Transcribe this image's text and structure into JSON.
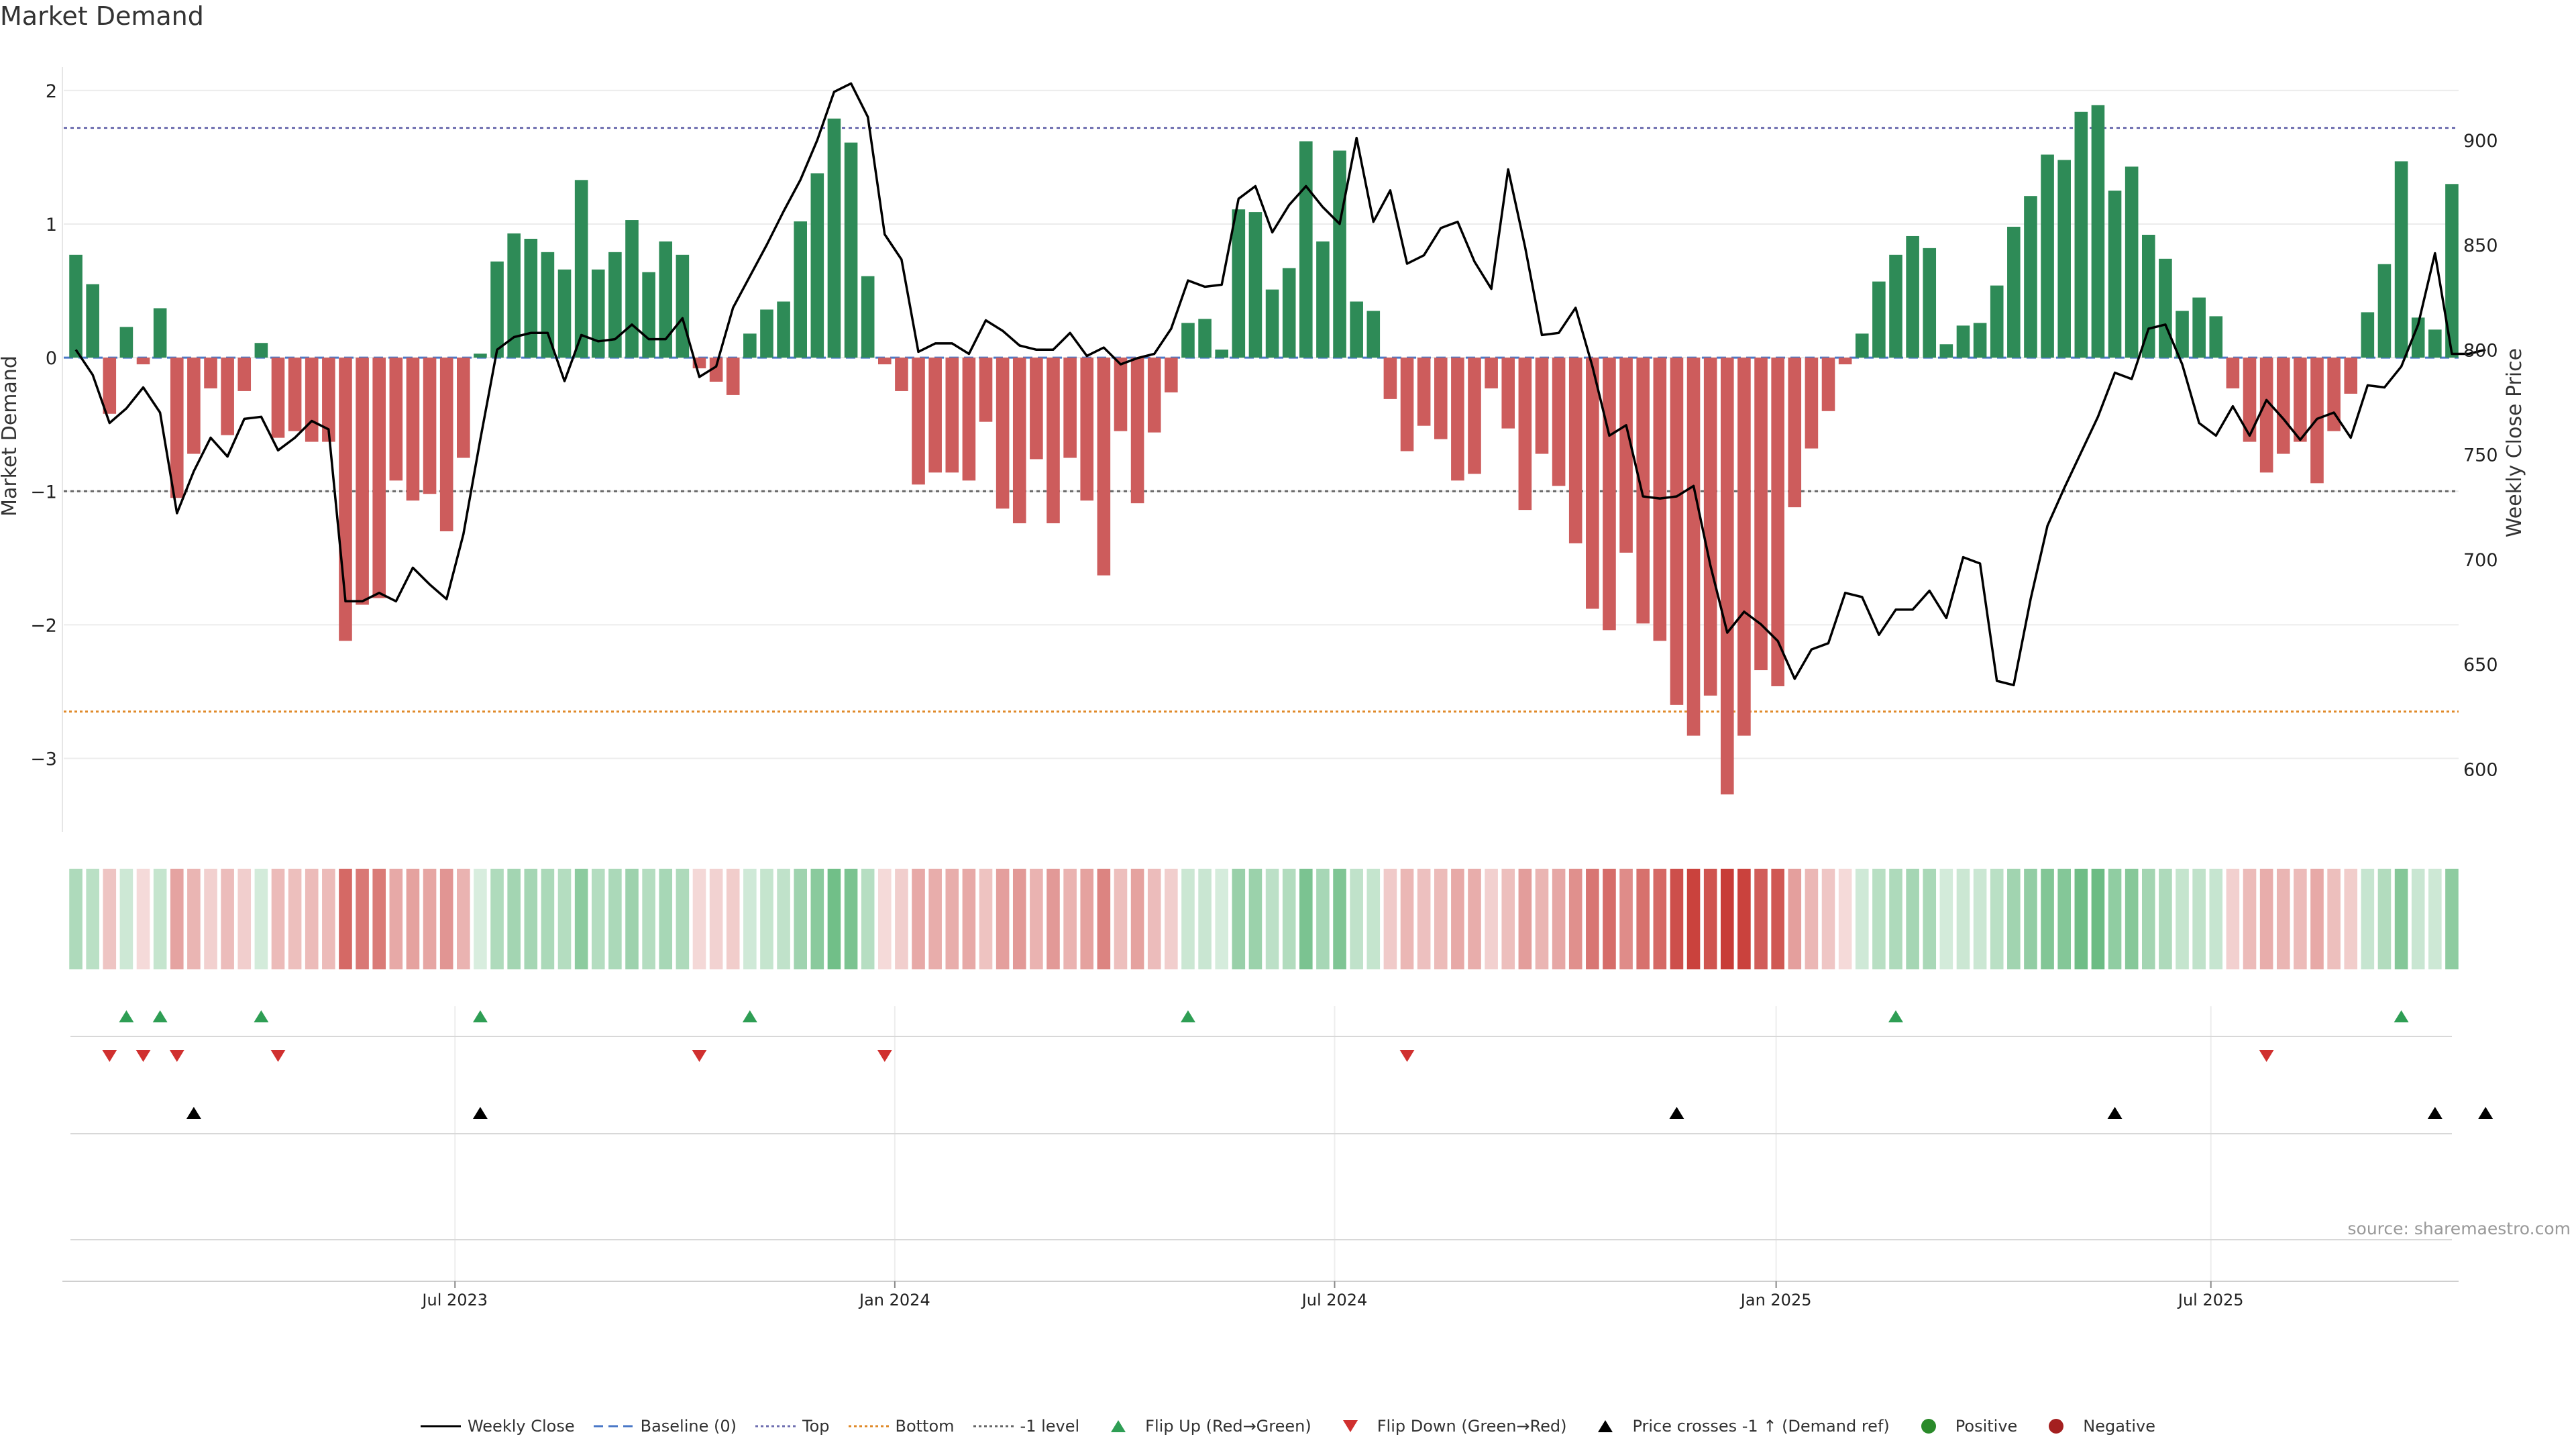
{
  "title": "Market Demand",
  "source": "source: sharemaestro.com",
  "chart_data": {
    "type": "bar",
    "title": "Market Demand",
    "ylabel_left": "Market Demand",
    "ylabel_right": "Weekly Close Price",
    "ylim_left": [
      -3.55,
      2.1
    ],
    "ylim_right": [
      570,
      930
    ],
    "y_ticks_left": [
      2,
      1,
      0,
      -1,
      -2,
      -3
    ],
    "y_tick_labels_left": [
      "2",
      "1",
      "0",
      "−1",
      "−2",
      "−3"
    ],
    "y_ticks_right": [
      900,
      850,
      800,
      750,
      700,
      650,
      600
    ],
    "reference_lines": {
      "top": 1.72,
      "baseline": 0,
      "minus1": -1,
      "bottom": -2.65
    },
    "x_tick_labels": [
      "Jul 2023",
      "Jan 2024",
      "Jul 2024",
      "Jan 2025",
      "Jul 2025"
    ],
    "x_tick_index": [
      22.5,
      48.6,
      74.7,
      100.9,
      126.7
    ],
    "demand": [
      0.77,
      0.55,
      -0.42,
      0.23,
      -0.05,
      0.37,
      -1.05,
      -0.72,
      -0.23,
      -0.58,
      -0.25,
      0.11,
      -0.6,
      -0.55,
      -0.63,
      -0.63,
      -2.12,
      -1.85,
      -1.8,
      -0.92,
      -1.07,
      -1.02,
      -1.3,
      -0.75,
      0.03,
      0.72,
      0.93,
      0.89,
      0.79,
      0.66,
      1.33,
      0.66,
      0.79,
      1.03,
      0.64,
      0.87,
      0.77,
      -0.08,
      -0.18,
      -0.28,
      0.18,
      0.36,
      0.42,
      1.02,
      1.38,
      1.79,
      1.61,
      0.61,
      -0.05,
      -0.25,
      -0.95,
      -0.86,
      -0.86,
      -0.92,
      -0.48,
      -1.13,
      -1.24,
      -0.76,
      -1.24,
      -0.75,
      -1.07,
      -1.63,
      -0.55,
      -1.09,
      -0.56,
      -0.26,
      0.26,
      0.29,
      0.06,
      1.11,
      1.09,
      0.51,
      0.67,
      1.62,
      0.87,
      1.55,
      0.42,
      0.35,
      -0.31,
      -0.7,
      -0.51,
      -0.61,
      -0.92,
      -0.87,
      -0.23,
      -0.53,
      -1.14,
      -0.72,
      -0.96,
      -1.39,
      -1.88,
      -2.04,
      -1.46,
      -1.99,
      -2.12,
      -2.6,
      -2.83,
      -2.53,
      -3.27,
      -2.83,
      -2.34,
      -2.46,
      -1.12,
      -0.68,
      -0.4,
      -0.05,
      0.18,
      0.57,
      0.77,
      0.91,
      0.82,
      0.1,
      0.24,
      0.26,
      0.54,
      0.98,
      1.21,
      1.52,
      1.48,
      1.84,
      1.89,
      1.25,
      1.43,
      0.92,
      0.74,
      0.35,
      0.45,
      0.31,
      -0.23,
      -0.63,
      -0.86,
      -0.72,
      -0.63,
      -0.94,
      -0.55,
      -0.27,
      0.34,
      0.7,
      1.47,
      0.3,
      0.21,
      1.3
    ],
    "close": [
      800,
      788,
      765,
      772,
      782,
      770,
      722,
      742,
      758,
      749,
      767,
      768,
      752,
      758,
      766,
      762,
      680,
      680,
      684,
      680,
      696,
      688,
      681,
      712,
      757,
      800,
      806,
      808,
      808,
      785,
      807,
      804,
      805,
      812,
      805,
      805,
      815,
      787,
      792,
      820,
      835,
      850,
      866,
      881,
      900,
      923,
      927,
      911,
      855,
      843,
      799,
      803,
      803,
      798,
      814,
      809,
      802,
      800,
      800,
      808,
      797,
      801,
      793,
      796,
      798,
      810,
      833,
      830,
      831,
      872,
      878,
      856,
      869,
      878,
      868,
      860,
      901,
      861,
      876,
      841,
      845,
      858,
      861,
      842,
      829,
      886,
      849,
      807,
      808,
      820,
      792,
      759,
      764,
      730,
      729,
      730,
      735,
      697,
      665,
      675,
      669,
      661,
      643,
      657,
      660,
      684,
      682,
      664,
      676,
      676,
      685,
      672,
      701,
      698,
      642,
      640,
      681,
      716,
      734,
      751,
      768,
      789,
      786,
      810,
      812,
      793,
      765,
      759,
      773,
      759,
      776,
      767,
      757,
      767,
      770,
      758,
      783,
      782,
      792,
      812,
      846,
      798,
      798,
      800
    ]
  },
  "flip_up_weeks": [
    3,
    5,
    11,
    24,
    40,
    66,
    108,
    138
  ],
  "flip_down_weeks": [
    2,
    4,
    6,
    12,
    37,
    48,
    79,
    130
  ],
  "price_cross_weeks": [
    7,
    24,
    95,
    121,
    140,
    143
  ],
  "legend": [
    {
      "label": "Weekly Close",
      "color": "#000000",
      "kind": "line"
    },
    {
      "label": "Baseline (0)",
      "color": "#4a78c7",
      "kind": "dash"
    },
    {
      "label": "Top",
      "color": "#6f6fb0",
      "kind": "dot"
    },
    {
      "label": "Bottom",
      "color": "#e08a2a",
      "kind": "dot"
    },
    {
      "label": "-1 level",
      "color": "#666666",
      "kind": "dot"
    },
    {
      "label": "Flip Up (Red→Green)",
      "color": "#2e9e54",
      "kind": "tri-up"
    },
    {
      "label": "Flip Down (Green→Red)",
      "color": "#d0302f",
      "kind": "tri-down"
    },
    {
      "label": "Price crosses -1 ↑ (Demand ref)",
      "color": "#000000",
      "kind": "tri-up"
    },
    {
      "label": "Positive",
      "color": "#2a8a2a",
      "kind": "dot-marker"
    },
    {
      "label": "Negative",
      "color": "#a42020",
      "kind": "dot-marker"
    }
  ],
  "colors": {
    "positive": "#2e8b57",
    "negative": "#cd5c5c",
    "line": "#000000"
  }
}
